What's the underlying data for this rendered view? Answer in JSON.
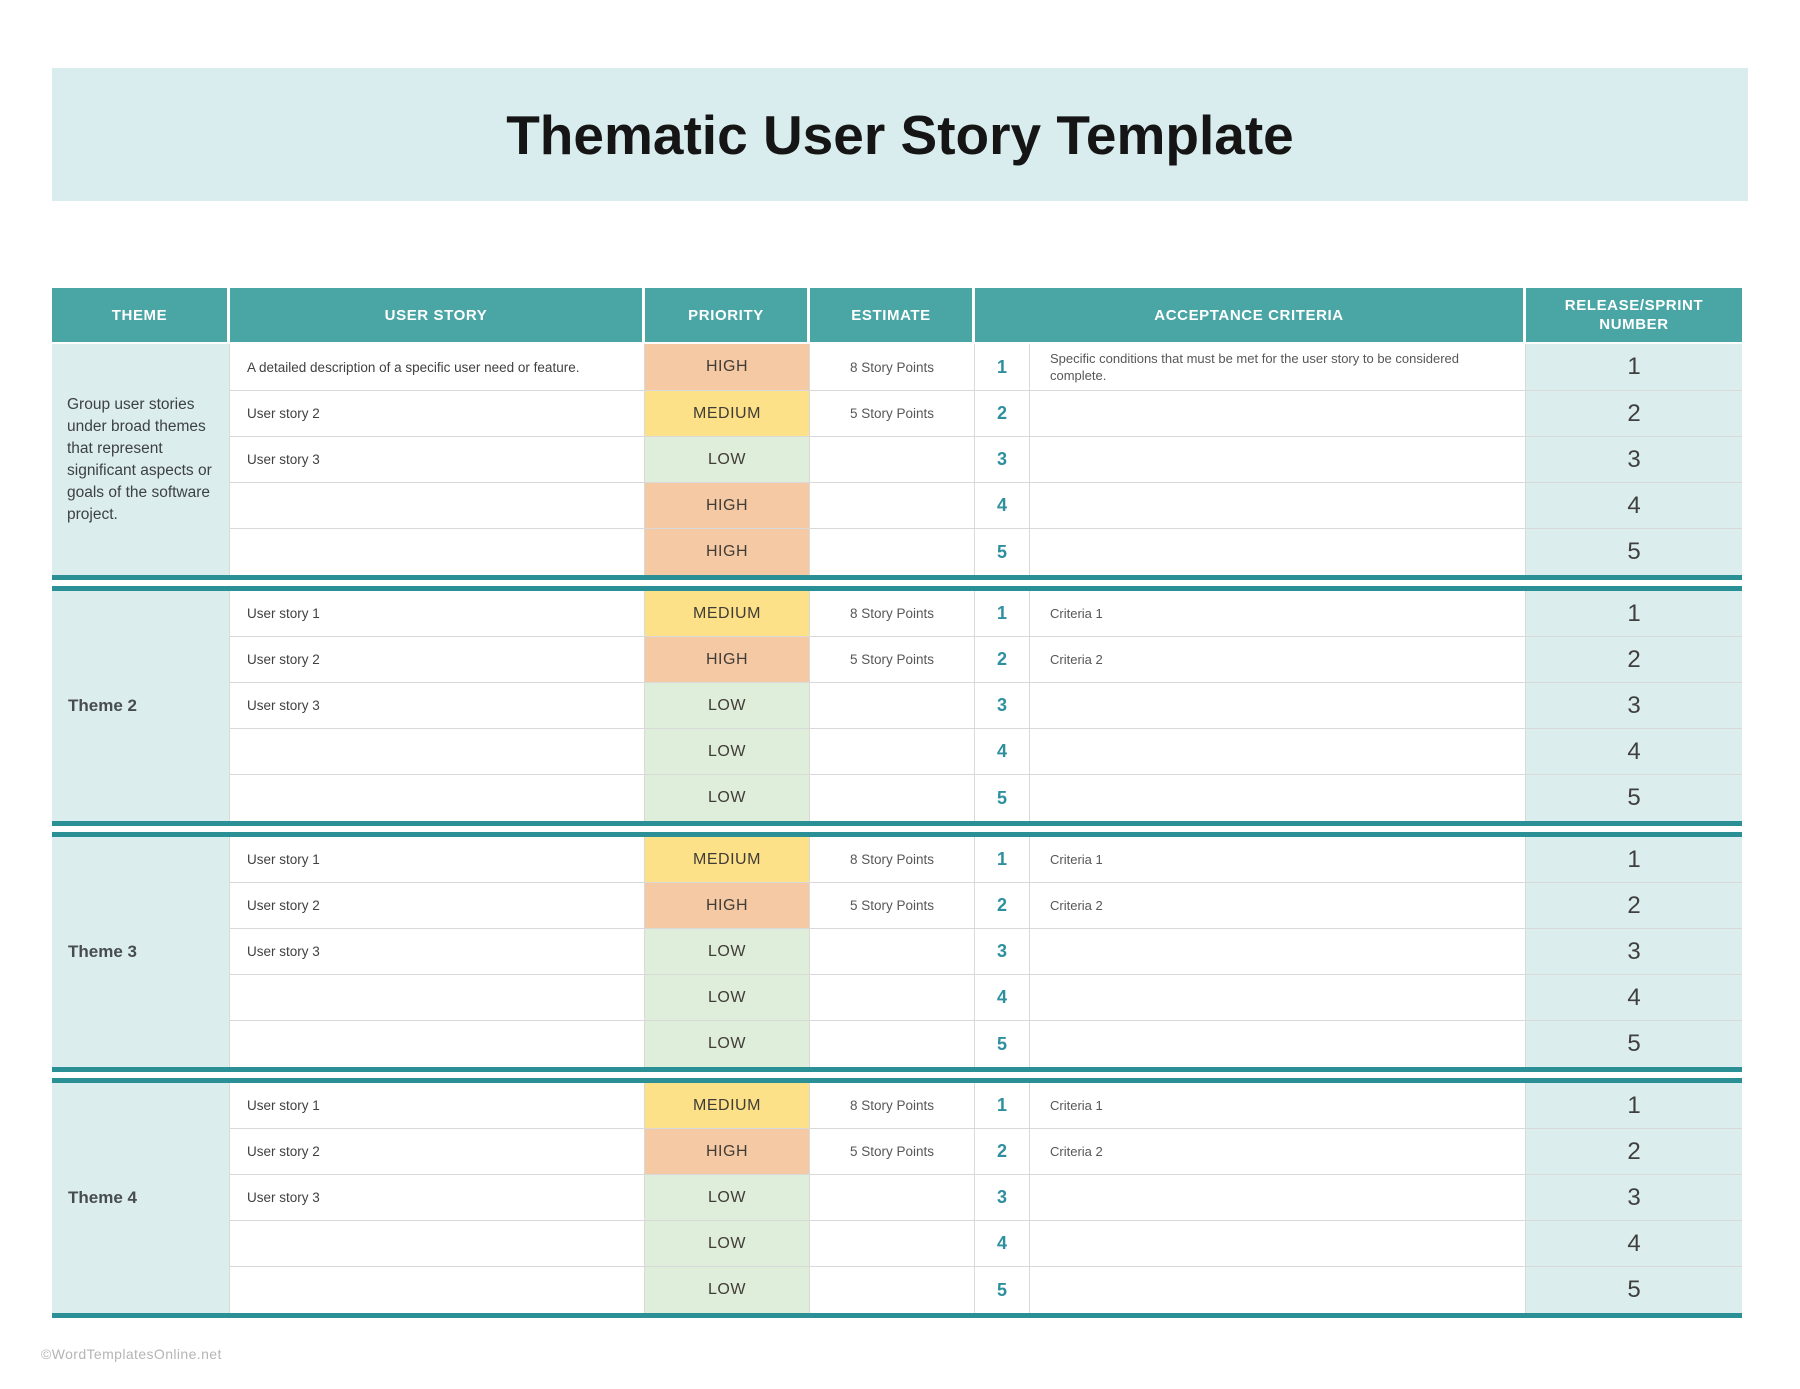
{
  "title": "Thematic User Story Template",
  "footer": {
    "credit": "©WordTemplatesOnline.net"
  },
  "colors": {
    "header-teal": "#4aa5a5",
    "separator-teal": "#2a9096",
    "accent-teal": "#2e8f9e",
    "cell-teal": "#dcedee",
    "band-teal": "#d9ecee",
    "priority-high": "#f5c9a3",
    "priority-medium": "#fce189",
    "priority-low": "#dfeeda"
  },
  "table": {
    "headers": {
      "theme": "THEME",
      "user_story": "USER STORY",
      "priority": "PRIORITY",
      "estimate": "ESTIMATE",
      "acceptance_criteria": "ACCEPTANCE CRITERIA",
      "release_sprint": "RELEASE/SPRINT NUMBER"
    },
    "sections": [
      {
        "theme": "Group user stories under broad themes that represent significant aspects or goals of the software project.",
        "rows": [
          {
            "story": "A detailed description of a specific user need or feature.",
            "priority": "HIGH",
            "estimate": "8 Story Points",
            "num": "1",
            "criteria": "Specific conditions that must be met for the user story to be considered complete.",
            "release": "1"
          },
          {
            "story": "User story 2",
            "priority": "MEDIUM",
            "estimate": "5 Story Points",
            "num": "2",
            "criteria": "",
            "release": "2"
          },
          {
            "story": "User story 3",
            "priority": "LOW",
            "estimate": "",
            "num": "3",
            "criteria": "",
            "release": "3"
          },
          {
            "story": "",
            "priority": "HIGH",
            "estimate": "",
            "num": "4",
            "criteria": "",
            "release": "4"
          },
          {
            "story": "",
            "priority": "HIGH",
            "estimate": "",
            "num": "5",
            "criteria": "",
            "release": "5"
          }
        ]
      },
      {
        "theme": "Theme 2",
        "rows": [
          {
            "story": "User story 1",
            "priority": "MEDIUM",
            "estimate": "8 Story Points",
            "num": "1",
            "criteria": "Criteria 1",
            "release": "1"
          },
          {
            "story": "User story 2",
            "priority": "HIGH",
            "estimate": "5 Story Points",
            "num": "2",
            "criteria": "Criteria 2",
            "release": "2"
          },
          {
            "story": "User story 3",
            "priority": "LOW",
            "estimate": "",
            "num": "3",
            "criteria": "",
            "release": "3"
          },
          {
            "story": "",
            "priority": "LOW",
            "estimate": "",
            "num": "4",
            "criteria": "",
            "release": "4"
          },
          {
            "story": "",
            "priority": "LOW",
            "estimate": "",
            "num": "5",
            "criteria": "",
            "release": "5"
          }
        ]
      },
      {
        "theme": "Theme 3",
        "rows": [
          {
            "story": "User story 1",
            "priority": "MEDIUM",
            "estimate": "8 Story Points",
            "num": "1",
            "criteria": "Criteria 1",
            "release": "1"
          },
          {
            "story": "User story 2",
            "priority": "HIGH",
            "estimate": "5 Story Points",
            "num": "2",
            "criteria": "Criteria 2",
            "release": "2"
          },
          {
            "story": "User story 3",
            "priority": "LOW",
            "estimate": "",
            "num": "3",
            "criteria": "",
            "release": "3"
          },
          {
            "story": "",
            "priority": "LOW",
            "estimate": "",
            "num": "4",
            "criteria": "",
            "release": "4"
          },
          {
            "story": "",
            "priority": "LOW",
            "estimate": "",
            "num": "5",
            "criteria": "",
            "release": "5"
          }
        ]
      },
      {
        "theme": "Theme 4",
        "rows": [
          {
            "story": "User story 1",
            "priority": "MEDIUM",
            "estimate": "8 Story Points",
            "num": "1",
            "criteria": "Criteria 1",
            "release": "1"
          },
          {
            "story": "User story 2",
            "priority": "HIGH",
            "estimate": "5 Story Points",
            "num": "2",
            "criteria": "Criteria 2",
            "release": "2"
          },
          {
            "story": "User story 3",
            "priority": "LOW",
            "estimate": "",
            "num": "3",
            "criteria": "",
            "release": "3"
          },
          {
            "story": "",
            "priority": "LOW",
            "estimate": "",
            "num": "4",
            "criteria": "",
            "release": "4"
          },
          {
            "story": "",
            "priority": "LOW",
            "estimate": "",
            "num": "5",
            "criteria": "",
            "release": "5"
          }
        ]
      }
    ]
  }
}
